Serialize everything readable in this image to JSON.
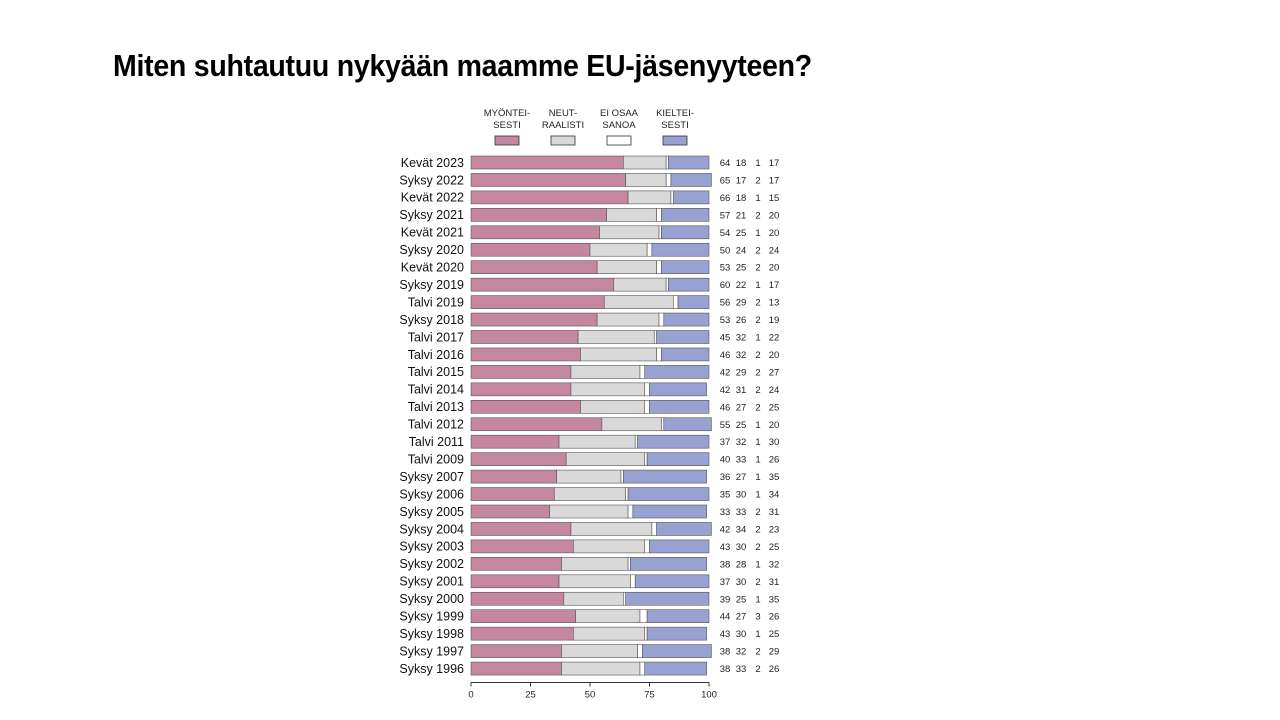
{
  "slide": {
    "title": "Miten suhtautuu nykyään maamme EU-jäsenyyteen?"
  },
  "chart_data": {
    "type": "bar",
    "stacked": true,
    "orientation": "horizontal",
    "categories": [
      "Kevät 2023",
      "Syksy 2022",
      "Kevät 2022",
      "Syksy 2021",
      "Kevät 2021",
      "Syksy 2020",
      "Kevät 2020",
      "Syksy 2019",
      "Talvi 2019",
      "Syksy 2018",
      "Talvi 2017",
      "Talvi 2016",
      "Talvi 2015",
      "Talvi 2014",
      "Talvi 2013",
      "Talvi 2012",
      "Talvi 2011",
      "Talvi 2009",
      "Syksy 2007",
      "Syksy 2006",
      "Syksy 2005",
      "Syksy 2004",
      "Syksy 2003",
      "Syksy 2002",
      "Syksy 2001",
      "Syksy 2000",
      "Syksy 1999",
      "Syksy 1998",
      "Syksy 1997",
      "Syksy 1996"
    ],
    "series": [
      {
        "name": "MYÖNTEI-\nSESTI",
        "color": "#c4879f",
        "values": [
          64,
          65,
          66,
          57,
          54,
          50,
          53,
          60,
          56,
          53,
          45,
          46,
          42,
          42,
          46,
          55,
          37,
          40,
          36,
          35,
          33,
          42,
          43,
          38,
          37,
          39,
          44,
          43,
          38,
          38
        ]
      },
      {
        "name": "NEUT-\nRAALISTI",
        "color": "#d9d9d9",
        "values": [
          18,
          17,
          18,
          21,
          25,
          24,
          25,
          22,
          29,
          26,
          32,
          32,
          29,
          31,
          27,
          25,
          32,
          33,
          27,
          30,
          33,
          34,
          30,
          28,
          30,
          25,
          27,
          30,
          32,
          33
        ]
      },
      {
        "name": "EI OSAA\nSANOA",
        "color": "#ffffff",
        "values": [
          1,
          2,
          1,
          2,
          1,
          2,
          2,
          1,
          2,
          2,
          1,
          2,
          2,
          2,
          2,
          1,
          1,
          1,
          1,
          1,
          2,
          2,
          2,
          1,
          2,
          1,
          3,
          1,
          2,
          2
        ]
      },
      {
        "name": "KIELTEI-\nSESTI",
        "color": "#98a2d2",
        "values": [
          17,
          17,
          15,
          20,
          20,
          24,
          20,
          17,
          13,
          19,
          22,
          20,
          27,
          24,
          25,
          20,
          30,
          26,
          35,
          34,
          31,
          23,
          25,
          32,
          31,
          35,
          26,
          25,
          29,
          26
        ]
      }
    ],
    "xlim": [
      0,
      100
    ],
    "xticks": [
      "0",
      "25",
      "50",
      "75",
      "100"
    ],
    "legend_position": "top",
    "value_labels_position": "right"
  }
}
